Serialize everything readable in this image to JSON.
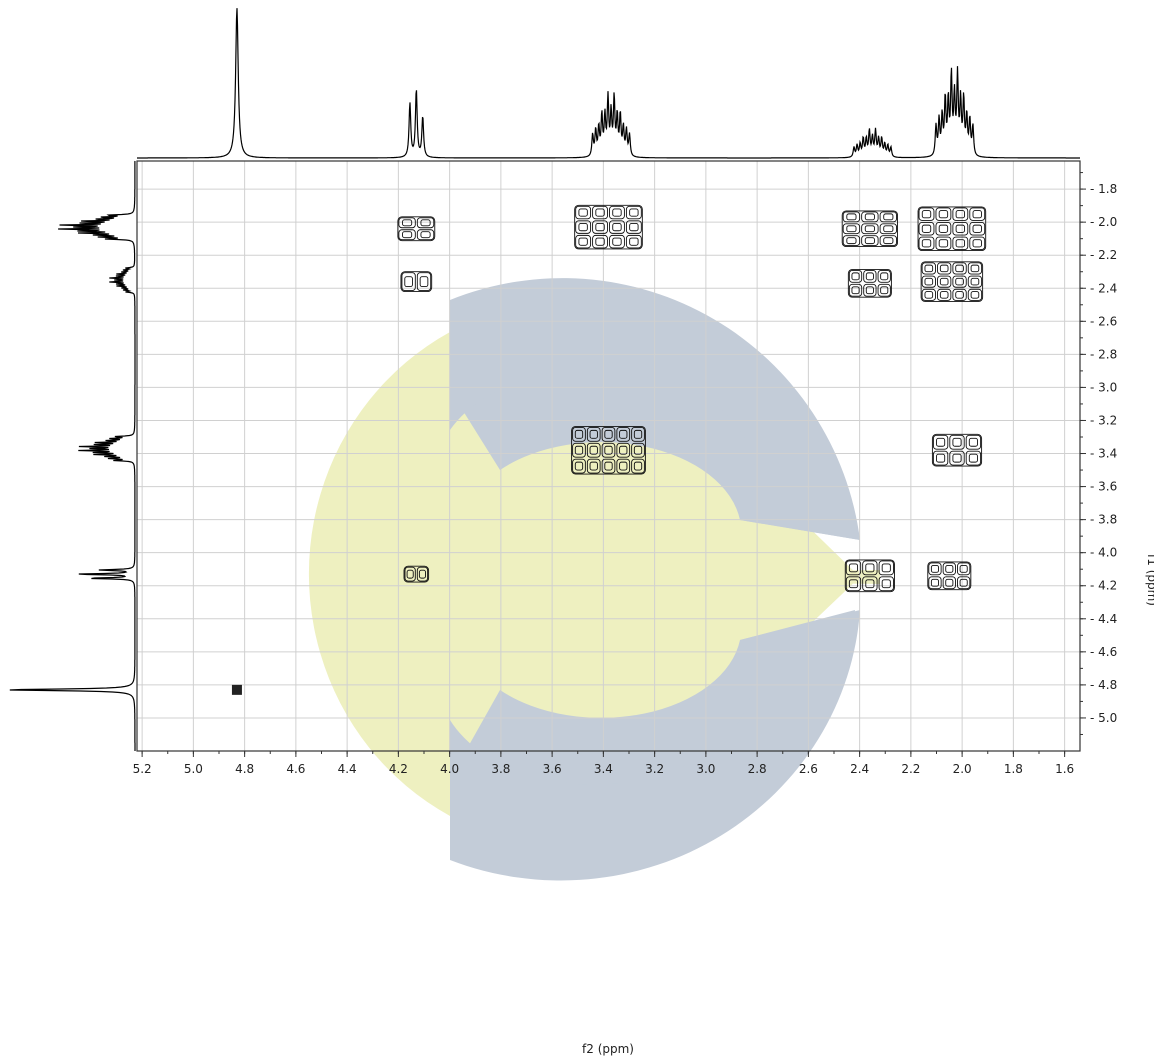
{
  "chart_data": {
    "type": "heatmap",
    "title": "",
    "xlabel": "f2 (ppm)",
    "ylabel": "f1 (ppm)",
    "x_axis": {
      "range": [
        5.22,
        1.54
      ],
      "reversed": true,
      "ticks": [
        5.2,
        5.0,
        4.8,
        4.6,
        4.4,
        4.2,
        4.0,
        3.8,
        3.6,
        3.4,
        3.2,
        3.0,
        2.8,
        2.6,
        2.4,
        2.2,
        2.0,
        1.8,
        1.6
      ],
      "tick_labels": [
        "5.2",
        "5.0",
        "4.8",
        "4.6",
        "4.4",
        "4.2",
        "4.0",
        "3.8",
        "3.6",
        "3.4",
        "3.2",
        "3.0",
        "2.8",
        "2.6",
        "2.4",
        "2.2",
        "2.0",
        "1.8",
        "1.6"
      ]
    },
    "y_axis": {
      "range": [
        1.63,
        5.2
      ],
      "position": "right",
      "ticks": [
        1.8,
        2.0,
        2.2,
        2.4,
        2.6,
        2.8,
        3.0,
        3.2,
        3.4,
        3.6,
        3.8,
        4.0,
        4.2,
        4.4,
        4.6,
        4.8,
        5.0
      ],
      "tick_labels": [
        "1.8",
        "2.0",
        "2.2",
        "2.4",
        "2.6",
        "2.8",
        "3.0",
        "3.2",
        "3.4",
        "3.6",
        "3.8",
        "4.0",
        "4.2",
        "4.4",
        "4.6",
        "4.8",
        "5.0"
      ]
    },
    "grid": true,
    "projection_peaks": [
      {
        "shift": 4.83,
        "intensity": 1.0,
        "type": "singlet"
      },
      {
        "shift": 4.13,
        "intensity": 0.45,
        "type": "triplet"
      },
      {
        "shift": 3.37,
        "intensity": 0.4,
        "type": "multiplet"
      },
      {
        "shift": 2.35,
        "intensity": 0.18,
        "type": "multiplet"
      },
      {
        "shift": 2.03,
        "intensity": 0.55,
        "type": "multiplet"
      }
    ],
    "cross_peaks": [
      {
        "f2": 4.13,
        "f1": 2.04,
        "size": 0.06
      },
      {
        "f2": 3.38,
        "f1": 2.03,
        "size": 0.11
      },
      {
        "f2": 2.36,
        "f1": 2.04,
        "size": 0.09
      },
      {
        "f2": 2.04,
        "f1": 2.04,
        "size": 0.11
      },
      {
        "f2": 4.13,
        "f1": 2.36,
        "size": 0.05
      },
      {
        "f2": 2.36,
        "f1": 2.37,
        "size": 0.07
      },
      {
        "f2": 2.04,
        "f1": 2.36,
        "size": 0.1
      },
      {
        "f2": 3.38,
        "f1": 3.38,
        "size": 0.12
      },
      {
        "f2": 2.02,
        "f1": 3.38,
        "size": 0.08
      },
      {
        "f2": 4.13,
        "f1": 4.13,
        "size": 0.04
      },
      {
        "f2": 2.36,
        "f1": 4.14,
        "size": 0.08
      },
      {
        "f2": 2.05,
        "f1": 4.14,
        "size": 0.07
      },
      {
        "f2": 4.83,
        "f1": 4.83,
        "size": 0.02
      }
    ]
  },
  "watermark": {
    "yellow": "#eef0c0",
    "blue": "#c3ccd8"
  }
}
